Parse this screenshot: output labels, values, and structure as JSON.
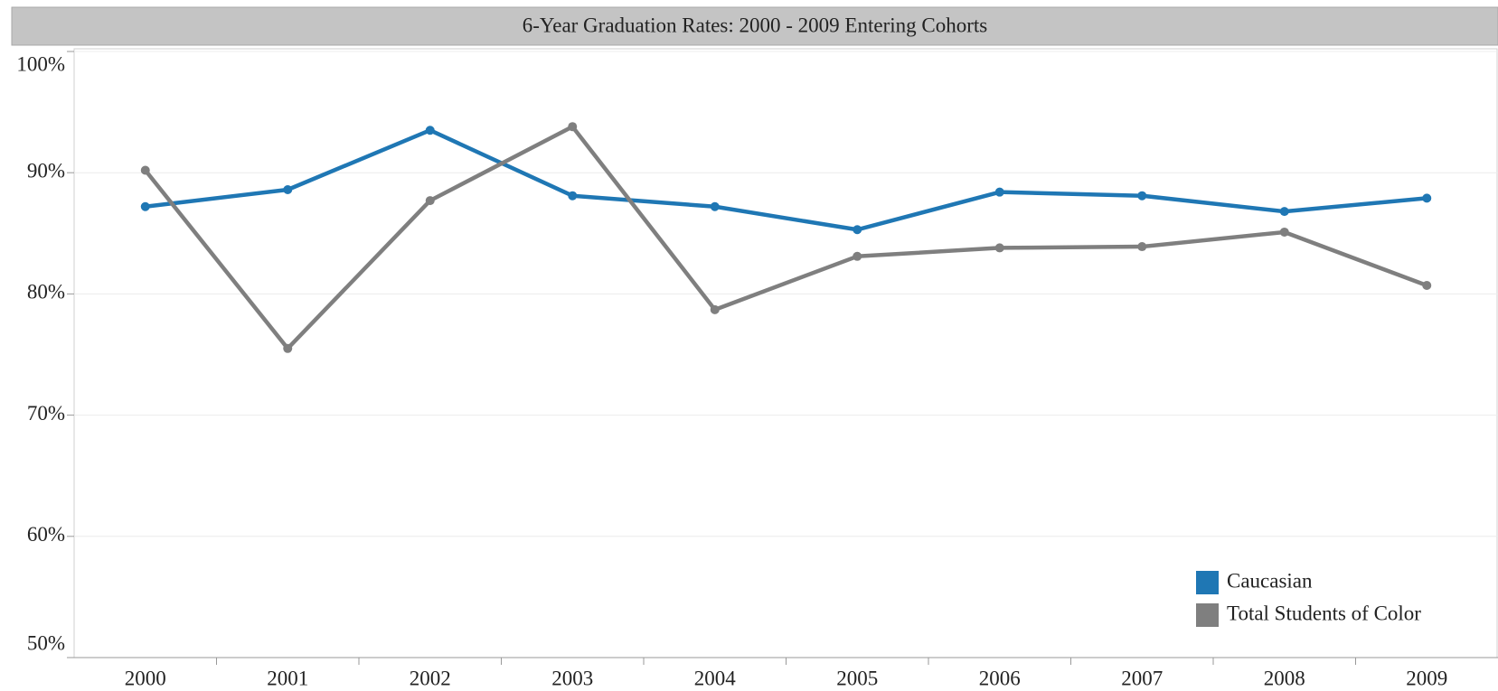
{
  "chart_data": {
    "type": "line",
    "title": "6-Year Graduation Rates: 2000 - 2009 Entering Cohorts",
    "categories": [
      "2000",
      "2001",
      "2002",
      "2003",
      "2004",
      "2005",
      "2006",
      "2007",
      "2008",
      "2009"
    ],
    "series": [
      {
        "name": "Caucasian",
        "color": "#1f77b4",
        "values": [
          87.2,
          88.6,
          93.5,
          88.1,
          87.2,
          85.3,
          88.4,
          88.1,
          86.8,
          87.9
        ]
      },
      {
        "name": "Total Students of Color",
        "color": "#7f7f7f",
        "values": [
          90.2,
          75.5,
          87.7,
          93.8,
          78.7,
          83.1,
          83.8,
          83.9,
          85.1,
          80.7
        ]
      }
    ],
    "ylim": [
      50,
      100
    ],
    "yticks": [
      {
        "value": 50,
        "label": "50%"
      },
      {
        "value": 60,
        "label": "60%"
      },
      {
        "value": 70,
        "label": "70%"
      },
      {
        "value": 80,
        "label": "80%"
      },
      {
        "value": 90,
        "label": "90%"
      },
      {
        "value": 100,
        "label": "100%"
      }
    ],
    "grid": true,
    "legend": "lower right"
  }
}
